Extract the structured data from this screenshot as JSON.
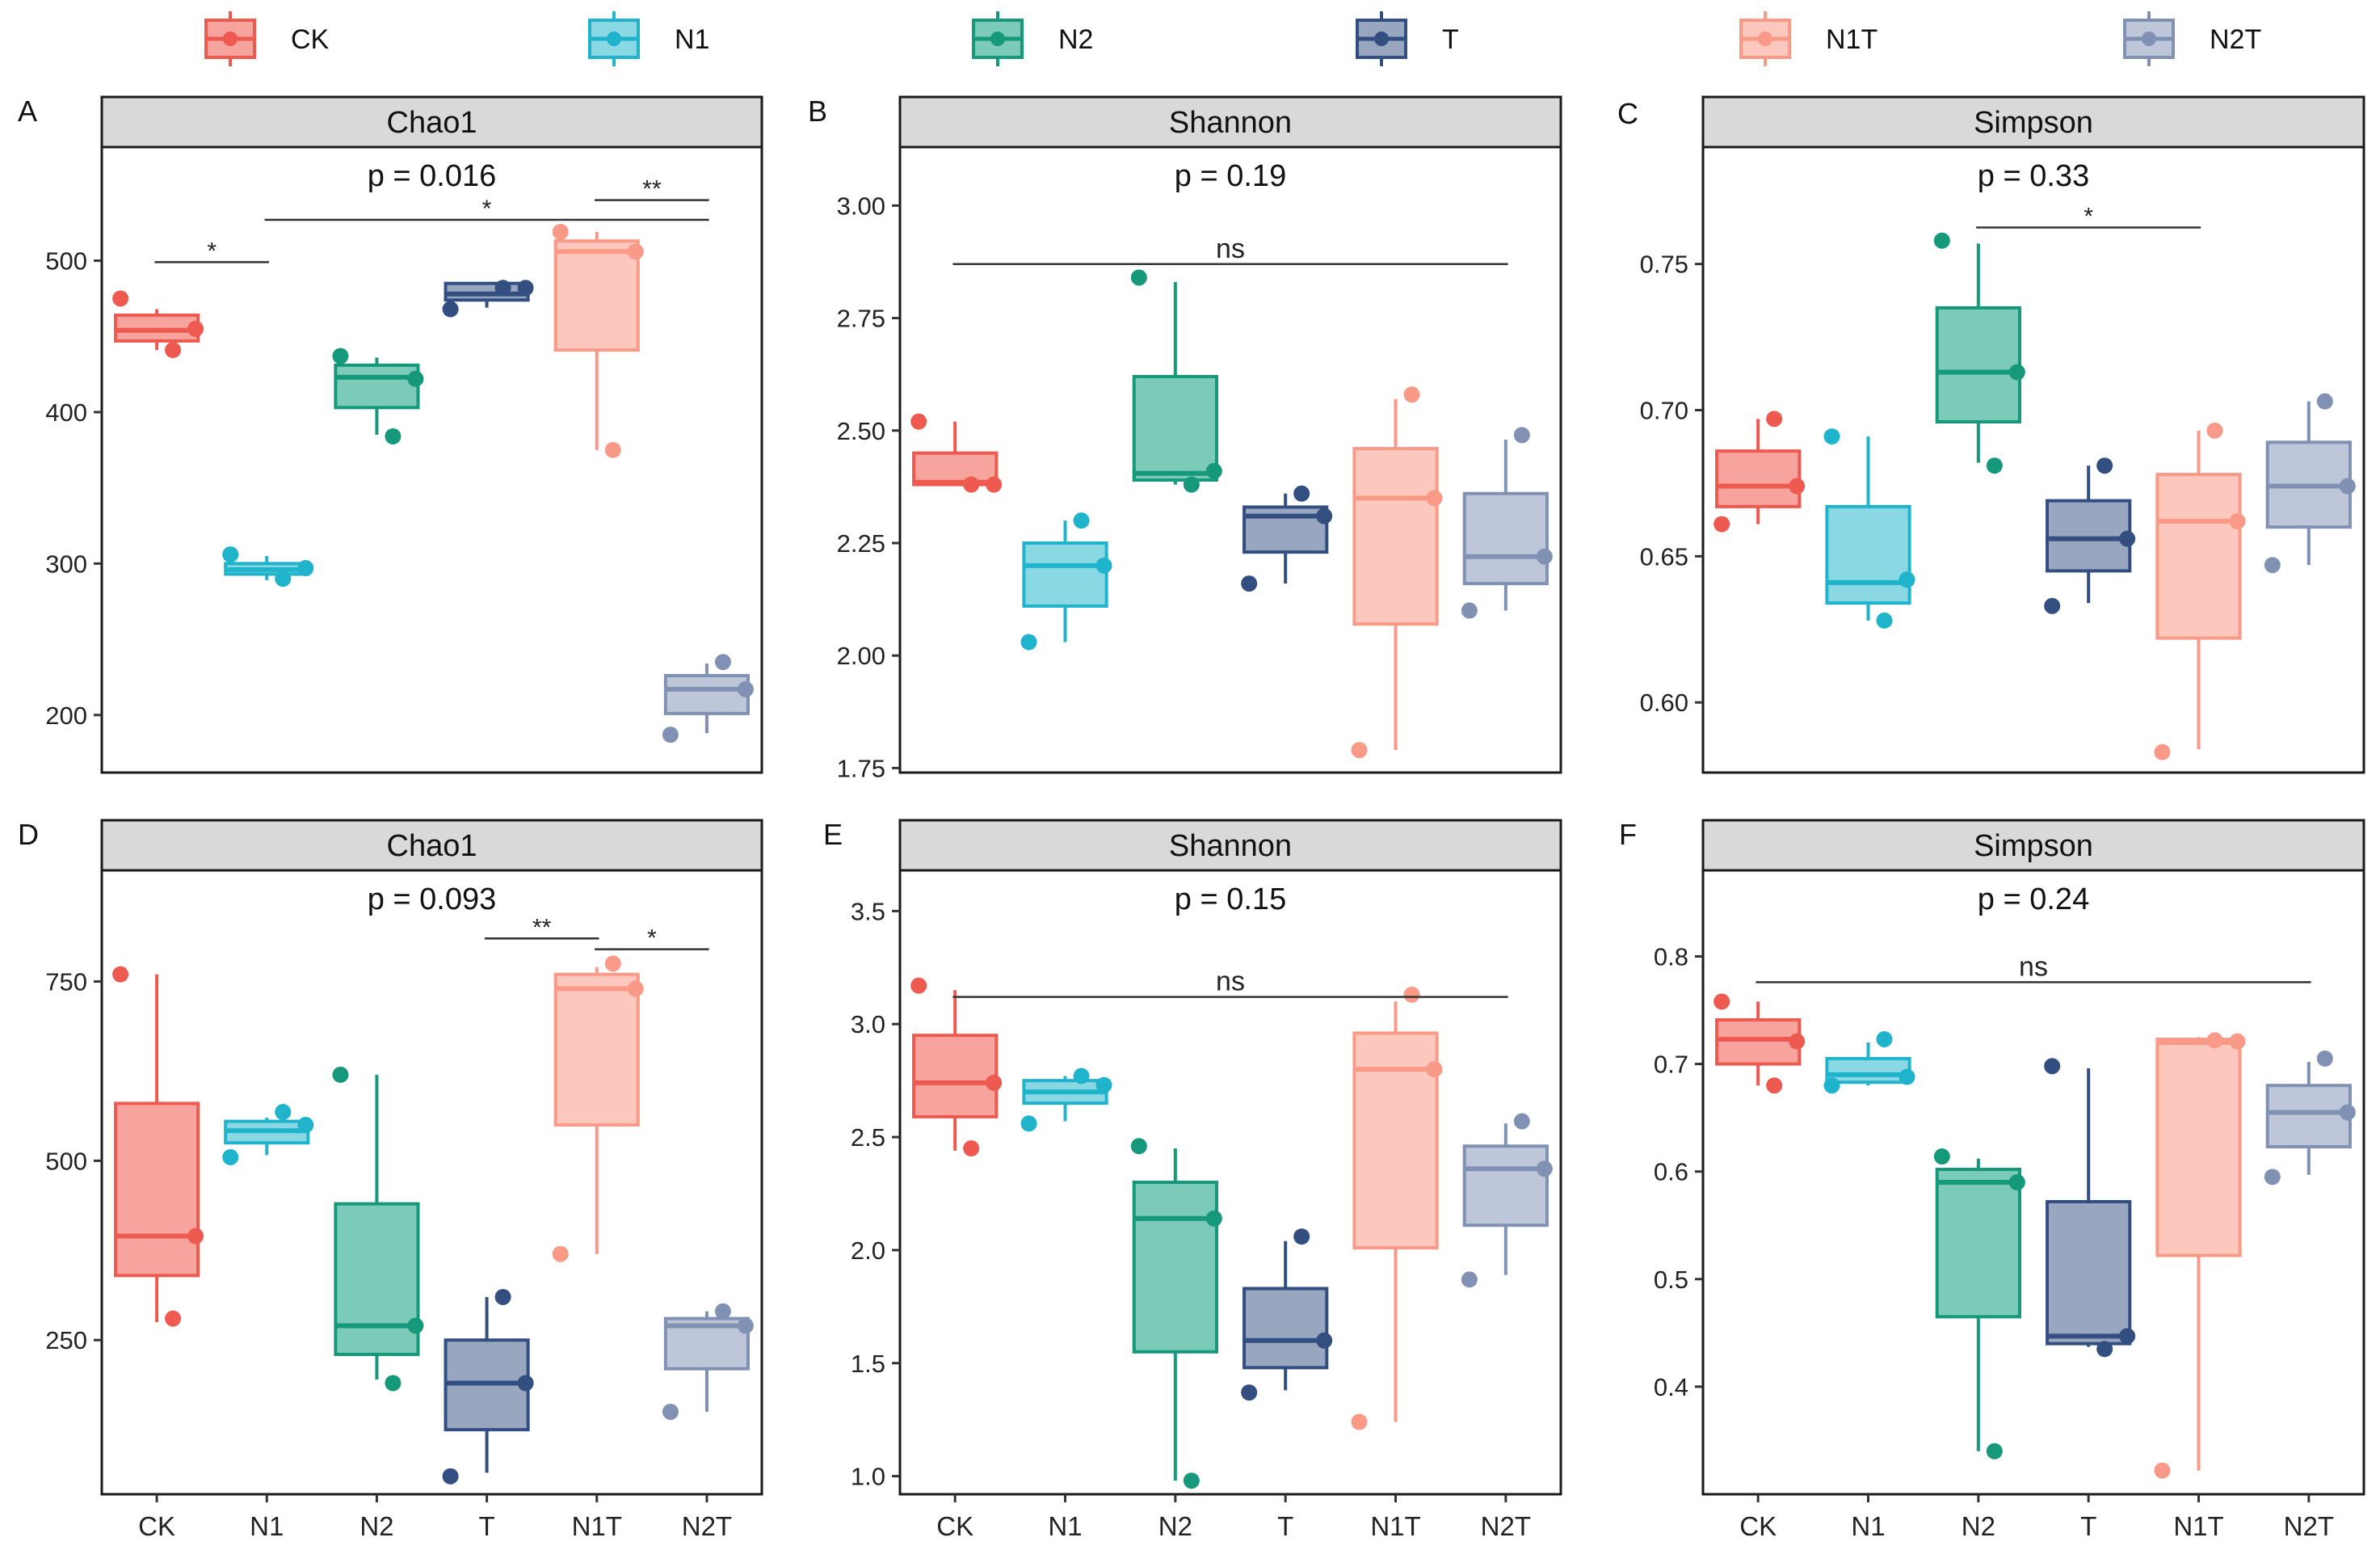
{
  "groups": [
    "CK",
    "N1",
    "N2",
    "T",
    "N1T",
    "N2T"
  ],
  "group_colors": {
    "CK": {
      "stroke": "#ef5a50",
      "fill": "#f6a49d"
    },
    "N1": {
      "stroke": "#1fb4cc",
      "fill": "#8ad8e4"
    },
    "N2": {
      "stroke": "#16987a",
      "fill": "#7ccbb9"
    },
    "T": {
      "stroke": "#334e80",
      "fill": "#98a6c0"
    },
    "N1T": {
      "stroke": "#f99a89",
      "fill": "#fcc7bd"
    },
    "N2T": {
      "stroke": "#8191b3",
      "fill": "#bec7d9"
    }
  },
  "legend": [
    {
      "label": "CK",
      "group": "CK"
    },
    {
      "label": "N1",
      "group": "N1"
    },
    {
      "label": "N2",
      "group": "N2"
    },
    {
      "label": "T",
      "group": "T"
    },
    {
      "label": "N1T",
      "group": "N1T"
    },
    {
      "label": "N2T",
      "group": "N2T"
    }
  ],
  "chart_data": [
    {
      "letter": "A",
      "type": "box",
      "title": "Chao1",
      "pvalue": "p = 0.016",
      "ylim": [
        162,
        575
      ],
      "yticks": [
        200,
        300,
        400,
        500
      ],
      "show_x_labels": false,
      "boxes": [
        {
          "group": "CK",
          "q1": 447,
          "median": 454,
          "q3": 464,
          "wlow": 441,
          "whigh": 468,
          "points": [
            475,
            441,
            455
          ]
        },
        {
          "group": "N1",
          "q1": 293,
          "median": 296,
          "q3": 300,
          "wlow": 289,
          "whigh": 305,
          "points": [
            306,
            290,
            297
          ]
        },
        {
          "group": "N2",
          "q1": 403,
          "median": 423,
          "q3": 431,
          "wlow": 385,
          "whigh": 436,
          "points": [
            437,
            384,
            422
          ]
        },
        {
          "group": "T",
          "q1": 474,
          "median": 478,
          "q3": 485,
          "wlow": 469,
          "whigh": 485,
          "points": [
            468,
            482,
            482
          ]
        },
        {
          "group": "N1T",
          "q1": 441,
          "median": 506,
          "q3": 513,
          "wlow": 375,
          "whigh": 519,
          "points": [
            519,
            375,
            506
          ]
        },
        {
          "group": "N2T",
          "q1": 201,
          "median": 217,
          "q3": 226,
          "wlow": 188,
          "whigh": 234,
          "points": [
            187,
            235,
            217
          ]
        }
      ],
      "sig": [
        {
          "from": 0,
          "to": 1,
          "value": 499,
          "label": "*"
        },
        {
          "from": 1,
          "to": 5,
          "value": 527,
          "label": "*"
        },
        {
          "from": 4,
          "to": 5,
          "value": 540,
          "label": "**"
        }
      ]
    },
    {
      "letter": "B",
      "type": "box",
      "title": "Shannon",
      "pvalue": "p = 0.19",
      "ylim": [
        1.74,
        3.13
      ],
      "yticks": [
        1.75,
        2.0,
        2.25,
        2.5,
        2.75,
        3.0
      ],
      "show_x_labels": false,
      "boxes": [
        {
          "group": "CK",
          "q1": 2.38,
          "median": 2.385,
          "q3": 2.45,
          "wlow": 2.38,
          "whigh": 2.52,
          "points": [
            2.52,
            2.38,
            2.38
          ]
        },
        {
          "group": "N1",
          "q1": 2.11,
          "median": 2.2,
          "q3": 2.25,
          "wlow": 2.03,
          "whigh": 2.3,
          "points": [
            2.03,
            2.3,
            2.2
          ]
        },
        {
          "group": "N2",
          "q1": 2.39,
          "median": 2.405,
          "q3": 2.62,
          "wlow": 2.38,
          "whigh": 2.83,
          "points": [
            2.84,
            2.38,
            2.41
          ]
        },
        {
          "group": "T",
          "q1": 2.23,
          "median": 2.31,
          "q3": 2.33,
          "wlow": 2.16,
          "whigh": 2.36,
          "points": [
            2.16,
            2.36,
            2.31
          ]
        },
        {
          "group": "N1T",
          "q1": 2.07,
          "median": 2.35,
          "q3": 2.46,
          "wlow": 1.79,
          "whigh": 2.57,
          "points": [
            1.79,
            2.58,
            2.35
          ]
        },
        {
          "group": "N2T",
          "q1": 2.16,
          "median": 2.22,
          "q3": 2.36,
          "wlow": 2.1,
          "whigh": 2.48,
          "points": [
            2.1,
            2.49,
            2.22
          ]
        }
      ],
      "sig": [
        {
          "from": 0,
          "to": 5,
          "value": 2.87,
          "label": "ns"
        }
      ]
    },
    {
      "letter": "C",
      "type": "box",
      "title": "Simpson",
      "pvalue": "p = 0.33",
      "ylim": [
        0.576,
        0.79
      ],
      "yticks": [
        0.6,
        0.65,
        0.7,
        0.75
      ],
      "show_x_labels": false,
      "boxes": [
        {
          "group": "CK",
          "q1": 0.667,
          "median": 0.674,
          "q3": 0.686,
          "wlow": 0.661,
          "whigh": 0.697,
          "points": [
            0.661,
            0.697,
            0.674
          ]
        },
        {
          "group": "N1",
          "q1": 0.634,
          "median": 0.641,
          "q3": 0.667,
          "wlow": 0.628,
          "whigh": 0.691,
          "points": [
            0.691,
            0.628,
            0.642
          ]
        },
        {
          "group": "N2",
          "q1": 0.696,
          "median": 0.713,
          "q3": 0.735,
          "wlow": 0.682,
          "whigh": 0.757,
          "points": [
            0.758,
            0.681,
            0.713
          ]
        },
        {
          "group": "T",
          "q1": 0.645,
          "median": 0.656,
          "q3": 0.669,
          "wlow": 0.634,
          "whigh": 0.681,
          "points": [
            0.633,
            0.681,
            0.656
          ]
        },
        {
          "group": "N1T",
          "q1": 0.622,
          "median": 0.662,
          "q3": 0.678,
          "wlow": 0.584,
          "whigh": 0.693,
          "points": [
            0.583,
            0.693,
            0.662
          ]
        },
        {
          "group": "N2T",
          "q1": 0.66,
          "median": 0.674,
          "q3": 0.689,
          "wlow": 0.647,
          "whigh": 0.703,
          "points": [
            0.647,
            0.703,
            0.674
          ]
        }
      ],
      "sig": [
        {
          "from": 2,
          "to": 4,
          "value": 0.7625,
          "label": "*"
        }
      ]
    },
    {
      "letter": "D",
      "type": "box",
      "title": "Chao1",
      "pvalue": "p = 0.093",
      "ylim": [
        35,
        905
      ],
      "yticks": [
        250,
        500,
        750
      ],
      "show_x_labels": true,
      "boxes": [
        {
          "group": "CK",
          "q1": 340,
          "median": 395,
          "q3": 580,
          "wlow": 275,
          "whigh": 760,
          "points": [
            760,
            280,
            395
          ]
        },
        {
          "group": "N1",
          "q1": 525,
          "median": 542,
          "q3": 555,
          "wlow": 508,
          "whigh": 560,
          "points": [
            505,
            568,
            550
          ]
        },
        {
          "group": "N2",
          "q1": 230,
          "median": 270,
          "q3": 440,
          "wlow": 195,
          "whigh": 620,
          "points": [
            620,
            190,
            270
          ]
        },
        {
          "group": "T",
          "q1": 125,
          "median": 190,
          "q3": 250,
          "wlow": 65,
          "whigh": 310,
          "points": [
            60,
            310,
            190
          ]
        },
        {
          "group": "N1T",
          "q1": 550,
          "median": 740,
          "q3": 760,
          "wlow": 370,
          "whigh": 770,
          "points": [
            370,
            775,
            740
          ]
        },
        {
          "group": "N2T",
          "q1": 210,
          "median": 270,
          "q3": 280,
          "wlow": 150,
          "whigh": 290,
          "points": [
            150,
            290,
            270
          ]
        }
      ],
      "sig": [
        {
          "from": 3,
          "to": 4,
          "value": 810,
          "label": "**"
        },
        {
          "from": 4,
          "to": 5,
          "value": 795,
          "label": "*"
        }
      ]
    },
    {
      "letter": "E",
      "type": "box",
      "title": "Shannon",
      "pvalue": "p = 0.15",
      "ylim": [
        0.92,
        3.68
      ],
      "yticks": [
        1.0,
        1.5,
        2.0,
        2.5,
        3.0,
        3.5
      ],
      "show_x_labels": true,
      "boxes": [
        {
          "group": "CK",
          "q1": 2.59,
          "median": 2.74,
          "q3": 2.95,
          "wlow": 2.44,
          "whigh": 3.15,
          "points": [
            3.17,
            2.45,
            2.74
          ]
        },
        {
          "group": "N1",
          "q1": 2.65,
          "median": 2.7,
          "q3": 2.75,
          "wlow": 2.57,
          "whigh": 2.77,
          "points": [
            2.56,
            2.77,
            2.73
          ]
        },
        {
          "group": "N2",
          "q1": 1.55,
          "median": 2.14,
          "q3": 2.3,
          "wlow": 0.98,
          "whigh": 2.45,
          "points": [
            2.46,
            0.98,
            2.14
          ]
        },
        {
          "group": "T",
          "q1": 1.48,
          "median": 1.6,
          "q3": 1.83,
          "wlow": 1.38,
          "whigh": 2.04,
          "points": [
            1.37,
            2.06,
            1.6
          ]
        },
        {
          "group": "N1T",
          "q1": 2.01,
          "median": 2.8,
          "q3": 2.96,
          "wlow": 1.24,
          "whigh": 3.1,
          "points": [
            1.24,
            3.13,
            2.8
          ]
        },
        {
          "group": "N2T",
          "q1": 2.11,
          "median": 2.36,
          "q3": 2.46,
          "wlow": 1.89,
          "whigh": 2.56,
          "points": [
            1.87,
            2.57,
            2.36
          ]
        }
      ],
      "sig": [
        {
          "from": 0,
          "to": 5,
          "value": 3.12,
          "label": "ns"
        }
      ]
    },
    {
      "letter": "F",
      "type": "box",
      "title": "Simpson",
      "pvalue": "p = 0.24",
      "ylim": [
        0.3,
        0.88
      ],
      "yticks": [
        0.4,
        0.5,
        0.6,
        0.7,
        0.8
      ],
      "show_x_labels": true,
      "boxes": [
        {
          "group": "CK",
          "q1": 0.7,
          "median": 0.723,
          "q3": 0.741,
          "wlow": 0.68,
          "whigh": 0.758,
          "points": [
            0.758,
            0.68,
            0.721
          ]
        },
        {
          "group": "N1",
          "q1": 0.683,
          "median": 0.69,
          "q3": 0.705,
          "wlow": 0.68,
          "whigh": 0.72,
          "points": [
            0.68,
            0.723,
            0.688
          ]
        },
        {
          "group": "N2",
          "q1": 0.465,
          "median": 0.59,
          "q3": 0.602,
          "wlow": 0.34,
          "whigh": 0.612,
          "points": [
            0.614,
            0.34,
            0.59
          ]
        },
        {
          "group": "T",
          "q1": 0.44,
          "median": 0.447,
          "q3": 0.572,
          "wlow": 0.437,
          "whigh": 0.696,
          "points": [
            0.698,
            0.435,
            0.447
          ]
        },
        {
          "group": "N1T",
          "q1": 0.522,
          "median": 0.72,
          "q3": 0.723,
          "wlow": 0.322,
          "whigh": 0.725,
          "points": [
            0.322,
            0.722,
            0.721
          ]
        },
        {
          "group": "N2T",
          "q1": 0.623,
          "median": 0.655,
          "q3": 0.68,
          "wlow": 0.597,
          "whigh": 0.702,
          "points": [
            0.595,
            0.705,
            0.655
          ]
        }
      ],
      "sig": [
        {
          "from": 0,
          "to": 5,
          "value": 0.776,
          "label": "ns"
        }
      ]
    }
  ]
}
